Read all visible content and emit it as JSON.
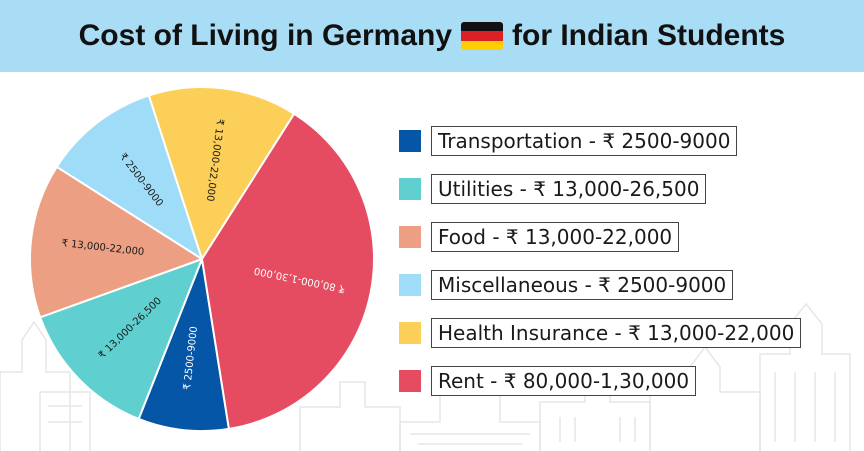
{
  "header": {
    "title_before": "Cost of Living in Germany",
    "title_after": "for Indian Students",
    "flag_colors": [
      "#111111",
      "#dd1f26",
      "#ffce00"
    ]
  },
  "chart_data": {
    "type": "pie",
    "title": "Cost of Living in Germany for Indian Students",
    "slices": [
      {
        "legend": "Transportation - ₹ 2500-9000",
        "label": "₹ 2500-9000",
        "value": 8.5,
        "color": "#0656a8",
        "text_color": "#ffffff"
      },
      {
        "legend": "Utilities - ₹ 13,000-26,500",
        "label": "₹ 13,000-26,500",
        "value": 13.5,
        "color": "#5fcfcf",
        "text_color": "#1a1a1a"
      },
      {
        "legend": "Food - ₹ 13,000-22,000",
        "label": "₹ 13,000-22,000",
        "value": 14.5,
        "color": "#ec9f82",
        "text_color": "#1a1a1a"
      },
      {
        "legend": "Miscellaneous - ₹ 2500-9000",
        "label": "₹ 2500-9000",
        "value": 11,
        "color": "#9fdcf8",
        "text_color": "#1a1a1a"
      },
      {
        "legend": "Health Insurance - ₹ 13,000-22,000",
        "label": "₹ 13,000-22,000",
        "value": 14,
        "color": "#fbcf58",
        "text_color": "#1a1a1a"
      },
      {
        "legend": "Rent - ₹ 80,000-1,30,000",
        "label": "₹ 80,000-1,30,000",
        "value": 38.5,
        "color": "#e54c61",
        "text_color": "#ffffff"
      }
    ],
    "legend_position": "right"
  }
}
